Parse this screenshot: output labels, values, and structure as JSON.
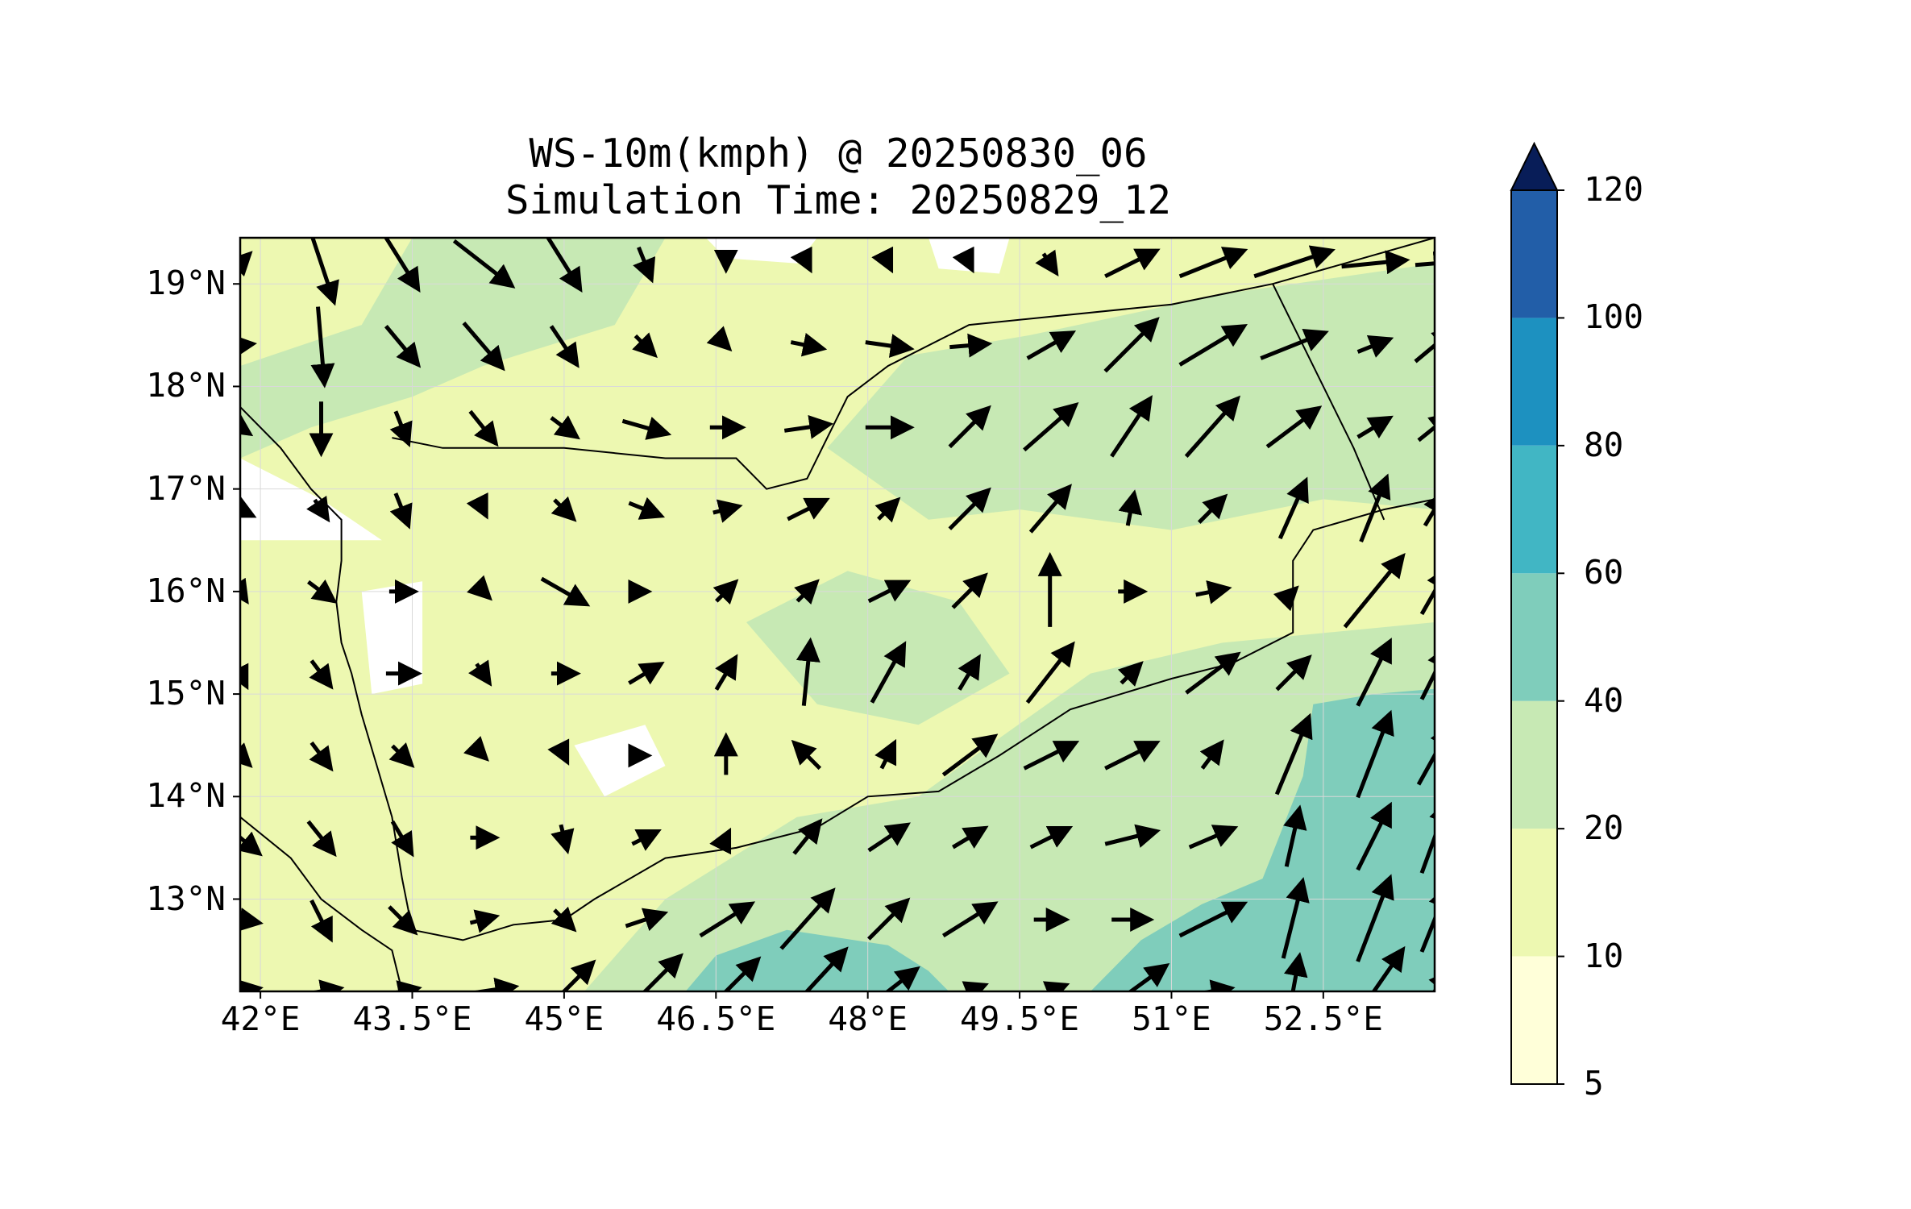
{
  "title_line1": "WS-10m(kmph) @ 20250830_06",
  "title_line2": "Simulation Time: 20250829_12",
  "map": {
    "lon_range": [
      41.8,
      53.6
    ],
    "lat_range": [
      12.1,
      19.45
    ],
    "lat_ticks": [
      {
        "value": 19,
        "label": "19°N"
      },
      {
        "value": 18,
        "label": "18°N"
      },
      {
        "value": 17,
        "label": "17°N"
      },
      {
        "value": 16,
        "label": "16°N"
      },
      {
        "value": 15,
        "label": "15°N"
      },
      {
        "value": 14,
        "label": "14°N"
      },
      {
        "value": 13,
        "label": "13°N"
      }
    ],
    "lon_ticks": [
      {
        "value": 42.0,
        "label": "42°E"
      },
      {
        "value": 43.5,
        "label": "43.5°E"
      },
      {
        "value": 45.0,
        "label": "45°E"
      },
      {
        "value": 46.5,
        "label": "46.5°E"
      },
      {
        "value": 48.0,
        "label": "48°E"
      },
      {
        "value": 49.5,
        "label": "49.5°E"
      },
      {
        "value": 51.0,
        "label": "51°E"
      },
      {
        "value": 52.5,
        "label": "52.5°E"
      }
    ],
    "gridlines": true
  },
  "colorbar": {
    "levels": [
      {
        "value": "5",
        "color": "#ffffd9"
      },
      {
        "value": "10",
        "color": "#edf8b1"
      },
      {
        "value": "20",
        "color": "#c7e9b4"
      },
      {
        "value": "40",
        "color": "#7fcdbb"
      },
      {
        "value": "60",
        "color": "#41b6c4"
      },
      {
        "value": "80",
        "color": "#1d91c0"
      },
      {
        "value": "100",
        "color": "#225ea8"
      },
      {
        "value": "120",
        "color": "#253494"
      }
    ],
    "extend_color": "#081d58",
    "extend": "max"
  },
  "wind_speed_zones": [
    {
      "color": "#c7e9b4",
      "lonlat": [
        [
          41.8,
          18.2
        ],
        [
          43.0,
          18.6
        ],
        [
          43.5,
          19.45
        ],
        [
          46.0,
          19.45
        ],
        [
          45.5,
          18.6
        ],
        [
          44.2,
          18.2
        ],
        [
          43.5,
          17.9
        ],
        [
          42.5,
          17.6
        ],
        [
          41.8,
          17.3
        ]
      ]
    },
    {
      "color": "#c7e9b4",
      "lonlat": [
        [
          47.6,
          17.4
        ],
        [
          48.4,
          18.3
        ],
        [
          49.6,
          18.5
        ],
        [
          51.5,
          18.9
        ],
        [
          53.6,
          19.2
        ],
        [
          53.6,
          16.8
        ],
        [
          52.5,
          16.9
        ],
        [
          51.0,
          16.6
        ],
        [
          49.5,
          16.8
        ],
        [
          48.6,
          16.7
        ]
      ]
    },
    {
      "color": "#c7e9b4",
      "lonlat": [
        [
          45.2,
          12.1
        ],
        [
          46.0,
          13.0
        ],
        [
          47.3,
          13.8
        ],
        [
          48.5,
          14.0
        ],
        [
          49.2,
          14.5
        ],
        [
          50.2,
          15.2
        ],
        [
          51.5,
          15.5
        ],
        [
          53.6,
          15.7
        ],
        [
          53.6,
          12.1
        ]
      ]
    },
    {
      "color": "#c7e9b4",
      "lonlat": [
        [
          46.8,
          15.7
        ],
        [
          47.8,
          16.2
        ],
        [
          48.9,
          15.9
        ],
        [
          49.4,
          15.2
        ],
        [
          48.5,
          14.7
        ],
        [
          47.5,
          14.9
        ]
      ]
    },
    {
      "color": "#7fcdbb",
      "lonlat": [
        [
          46.2,
          12.1
        ],
        [
          46.5,
          12.45
        ],
        [
          47.2,
          12.7
        ],
        [
          48.2,
          12.55
        ],
        [
          48.6,
          12.3
        ],
        [
          48.8,
          12.1
        ]
      ]
    },
    {
      "color": "#7fcdbb",
      "lonlat": [
        [
          50.2,
          12.1
        ],
        [
          50.7,
          12.6
        ],
        [
          51.3,
          12.95
        ],
        [
          51.9,
          13.2
        ],
        [
          52.3,
          14.2
        ],
        [
          52.4,
          14.9
        ],
        [
          53.0,
          15.0
        ],
        [
          53.6,
          15.05
        ],
        [
          53.6,
          12.1
        ]
      ]
    },
    {
      "color": "#ffffff",
      "lonlat": [
        [
          43.0,
          16.0
        ],
        [
          43.6,
          16.1
        ],
        [
          43.6,
          15.1
        ],
        [
          43.1,
          15.0
        ]
      ]
    },
    {
      "color": "#ffffff",
      "lonlat": [
        [
          45.1,
          14.5
        ],
        [
          45.8,
          14.7
        ],
        [
          46.0,
          14.3
        ],
        [
          45.4,
          14.0
        ]
      ]
    },
    {
      "color": "#ffffff",
      "lonlat": [
        [
          46.4,
          19.45
        ],
        [
          47.5,
          19.45
        ],
        [
          47.3,
          19.2
        ],
        [
          46.6,
          19.25
        ]
      ]
    },
    {
      "color": "#ffffff",
      "lonlat": [
        [
          48.6,
          19.45
        ],
        [
          49.4,
          19.45
        ],
        [
          49.3,
          19.1
        ],
        [
          48.7,
          19.15
        ]
      ]
    },
    {
      "color": "#ffffff",
      "lonlat": [
        [
          41.8,
          17.3
        ],
        [
          42.6,
          16.9
        ],
        [
          42.9,
          16.7
        ],
        [
          43.2,
          16.5
        ],
        [
          41.8,
          16.5
        ]
      ]
    }
  ],
  "coastlines": [
    {
      "name": "arabian-coast-west",
      "lonlat": [
        [
          41.8,
          17.8
        ],
        [
          42.2,
          17.4
        ],
        [
          42.5,
          17.0
        ],
        [
          42.8,
          16.7
        ],
        [
          42.8,
          16.3
        ],
        [
          42.75,
          15.9
        ],
        [
          42.8,
          15.5
        ],
        [
          42.9,
          15.2
        ],
        [
          43.0,
          14.8
        ],
        [
          43.15,
          14.3
        ],
        [
          43.3,
          13.8
        ],
        [
          43.4,
          13.2
        ],
        [
          43.5,
          12.7
        ]
      ]
    },
    {
      "name": "arabian-coast-south",
      "lonlat": [
        [
          43.5,
          12.7
        ],
        [
          44.0,
          12.6
        ],
        [
          44.5,
          12.75
        ],
        [
          45.0,
          12.8
        ],
        [
          45.3,
          13.0
        ],
        [
          46.0,
          13.4
        ],
        [
          46.7,
          13.5
        ],
        [
          47.5,
          13.7
        ],
        [
          48.0,
          14.0
        ],
        [
          48.7,
          14.05
        ],
        [
          49.3,
          14.4
        ],
        [
          50.0,
          14.85
        ],
        [
          51.0,
          15.15
        ],
        [
          51.6,
          15.3
        ],
        [
          52.2,
          15.6
        ],
        [
          52.2,
          16.3
        ],
        [
          52.4,
          16.6
        ],
        [
          53.1,
          16.8
        ],
        [
          53.6,
          16.9
        ]
      ]
    },
    {
      "name": "african-coast",
      "lonlat": [
        [
          41.8,
          13.8
        ],
        [
          42.3,
          13.4
        ],
        [
          42.6,
          13.0
        ],
        [
          43.0,
          12.7
        ],
        [
          43.3,
          12.5
        ],
        [
          43.4,
          12.1
        ]
      ]
    },
    {
      "name": "yemen-saudi-border",
      "lonlat": [
        [
          43.3,
          17.5
        ],
        [
          43.8,
          17.4
        ],
        [
          45.0,
          17.4
        ],
        [
          46.0,
          17.3
        ],
        [
          46.7,
          17.3
        ],
        [
          47.0,
          17.0
        ],
        [
          47.4,
          17.1
        ],
        [
          47.8,
          17.9
        ],
        [
          48.2,
          18.2
        ],
        [
          49.0,
          18.6
        ],
        [
          51.0,
          18.8
        ],
        [
          52.0,
          19.0
        ]
      ]
    },
    {
      "name": "saudi-oman-border",
      "lonlat": [
        [
          52.0,
          19.0
        ],
        [
          53.6,
          19.45
        ]
      ]
    },
    {
      "name": "yemen-oman-border",
      "lonlat": [
        [
          52.0,
          19.0
        ],
        [
          52.8,
          17.4
        ],
        [
          53.1,
          16.7
        ]
      ]
    }
  ],
  "wind_grid": {
    "lons": [
      41.8,
      42.6,
      43.4,
      44.2,
      45.0,
      45.8,
      46.6,
      47.4,
      48.2,
      49.0,
      49.8,
      50.6,
      51.4,
      52.2,
      53.0,
      53.6
    ],
    "lats": [
      19.2,
      18.4,
      17.6,
      16.8,
      16.0,
      15.2,
      14.4,
      13.6,
      12.8,
      12.1
    ]
  },
  "wind_vectors": [
    [
      [
        0.3,
        0.3
      ],
      [
        0.4,
        -1.2
      ],
      [
        0.5,
        -0.8
      ],
      [
        0.9,
        -0.7
      ],
      [
        0.5,
        -0.8
      ],
      [
        0.2,
        -0.5
      ],
      [
        0,
        -0.2
      ],
      [
        0.1,
        -0.2
      ],
      [
        0.1,
        -0.2
      ],
      [
        0.1,
        -0.2
      ],
      [
        0.2,
        -0.3
      ],
      [
        0.8,
        0.4
      ],
      [
        1.0,
        0.4
      ],
      [
        1.2,
        0.4
      ],
      [
        1.0,
        0.1
      ],
      [
        0.6,
        0.05
      ]
    ],
    [
      [
        0.4,
        0.05
      ],
      [
        0.1,
        -1.2
      ],
      [
        0.5,
        -0.6
      ],
      [
        0.6,
        -0.7
      ],
      [
        0.4,
        -0.6
      ],
      [
        0.3,
        -0.3
      ],
      [
        0.1,
        -0.1
      ],
      [
        0.5,
        -0.1
      ],
      [
        0.7,
        -0.1
      ],
      [
        0.6,
        0.05
      ],
      [
        0.7,
        0.4
      ],
      [
        0.8,
        0.8
      ],
      [
        1.0,
        0.6
      ],
      [
        1.0,
        0.4
      ],
      [
        0.5,
        0.2
      ],
      [
        0.6,
        0.5
      ]
    ],
    [
      [
        0.3,
        -0.2
      ],
      [
        0,
        -0.8
      ],
      [
        0.2,
        -0.5
      ],
      [
        0.4,
        -0.5
      ],
      [
        0.4,
        -0.3
      ],
      [
        0.7,
        -0.2
      ],
      [
        0.5,
        0
      ],
      [
        0.7,
        0.1
      ],
      [
        0.7,
        0
      ],
      [
        0.6,
        0.6
      ],
      [
        0.8,
        0.7
      ],
      [
        0.6,
        0.9
      ],
      [
        0.8,
        0.9
      ],
      [
        0.8,
        0.6
      ],
      [
        0.5,
        0.3
      ],
      [
        0.5,
        0.4
      ]
    ],
    [
      [
        0.4,
        -0.2
      ],
      [
        0.2,
        -0.3
      ],
      [
        0.2,
        -0.5
      ],
      [
        0.1,
        -0.2
      ],
      [
        0.3,
        -0.3
      ],
      [
        0.5,
        -0.2
      ],
      [
        0.4,
        0.1
      ],
      [
        0.6,
        0.3
      ],
      [
        0.3,
        0.3
      ],
      [
        0.6,
        0.6
      ],
      [
        0.6,
        0.7
      ],
      [
        0.1,
        0.5
      ],
      [
        0.4,
        0.4
      ],
      [
        0.4,
        0.9
      ],
      [
        0.4,
        1.0
      ],
      [
        0.3,
        0.5
      ]
    ],
    [
      [
        0.2,
        -0.3
      ],
      [
        0.4,
        -0.3
      ],
      [
        0.4,
        0
      ],
      [
        0.2,
        -0.2
      ],
      [
        0.7,
        -0.4
      ],
      [
        0.1,
        0
      ],
      [
        0.3,
        0.3
      ],
      [
        0.3,
        0.3
      ],
      [
        0.6,
        0.3
      ],
      [
        0.5,
        0.5
      ],
      [
        0,
        1.1
      ],
      [
        0.4,
        0
      ],
      [
        0.5,
        0.1
      ],
      [
        0.1,
        0.1
      ],
      [
        0.9,
        1.1
      ],
      [
        0.4,
        0.7
      ]
    ],
    [
      [
        0.2,
        -0.4
      ],
      [
        0.3,
        -0.4
      ],
      [
        0.5,
        0
      ],
      [
        0.2,
        -0.3
      ],
      [
        0.4,
        0
      ],
      [
        0.5,
        0.3
      ],
      [
        0.3,
        0.5
      ],
      [
        0.1,
        1.0
      ],
      [
        0.5,
        0.9
      ],
      [
        0.3,
        0.5
      ],
      [
        0.7,
        0.9
      ],
      [
        0.3,
        0.3
      ],
      [
        0.8,
        0.6
      ],
      [
        0.5,
        0.5
      ],
      [
        0.5,
        1.0
      ],
      [
        0.4,
        0.8
      ]
    ],
    [
      [
        0.3,
        -0.3
      ],
      [
        0.3,
        -0.4
      ],
      [
        0.3,
        -0.3
      ],
      [
        0.1,
        -0.1
      ],
      [
        0.1,
        -0.2
      ],
      [
        0.1,
        0
      ],
      [
        0,
        0.6
      ],
      [
        -0.4,
        0.4
      ],
      [
        0.2,
        0.4
      ],
      [
        0.8,
        0.6
      ],
      [
        0.8,
        0.4
      ],
      [
        0.8,
        0.4
      ],
      [
        0.3,
        0.4
      ],
      [
        0.5,
        1.2
      ],
      [
        0.5,
        1.3
      ],
      [
        0.5,
        0.9
      ]
    ],
    [
      [
        0.6,
        -0.5
      ],
      [
        0.4,
        -0.5
      ],
      [
        0.3,
        -0.5
      ],
      [
        0.4,
        0
      ],
      [
        0.1,
        -0.4
      ],
      [
        0.4,
        0.2
      ],
      [
        0.1,
        0.2
      ],
      [
        0.4,
        0.5
      ],
      [
        0.6,
        0.4
      ],
      [
        0.5,
        0.3
      ],
      [
        0.6,
        0.3
      ],
      [
        0.8,
        0.2
      ],
      [
        0.7,
        0.3
      ],
      [
        0.2,
        0.9
      ],
      [
        0.5,
        1.0
      ],
      [
        0.4,
        1.1
      ]
    ],
    [
      [
        0.6,
        -0.1
      ],
      [
        0.3,
        -0.6
      ],
      [
        0.4,
        -0.4
      ],
      [
        0.4,
        0.1
      ],
      [
        0.3,
        -0.3
      ],
      [
        0.6,
        0.2
      ],
      [
        0.8,
        0.5
      ],
      [
        0.8,
        0.9
      ],
      [
        0.6,
        0.6
      ],
      [
        0.8,
        0.5
      ],
      [
        0.5,
        0
      ],
      [
        0.6,
        0
      ],
      [
        1.0,
        0.5
      ],
      [
        0.3,
        1.2
      ],
      [
        0.5,
        1.3
      ],
      [
        0.4,
        1.0
      ]
    ],
    [
      [
        0.6,
        0.1
      ],
      [
        0.6,
        0.1
      ],
      [
        0.5,
        0.1
      ],
      [
        1.0,
        0.15
      ],
      [
        0.9,
        0.9
      ],
      [
        1.1,
        1.1
      ],
      [
        1.0,
        1.0
      ],
      [
        1.2,
        1.3
      ],
      [
        0.9,
        0.7
      ],
      [
        0.5,
        0.2
      ],
      [
        0.5,
        0.2
      ],
      [
        1.1,
        0.8
      ],
      [
        0.6,
        0.1
      ],
      [
        0.2,
        1.1
      ],
      [
        0.9,
        1.3
      ],
      [
        0.5,
        0.6
      ]
    ]
  ]
}
